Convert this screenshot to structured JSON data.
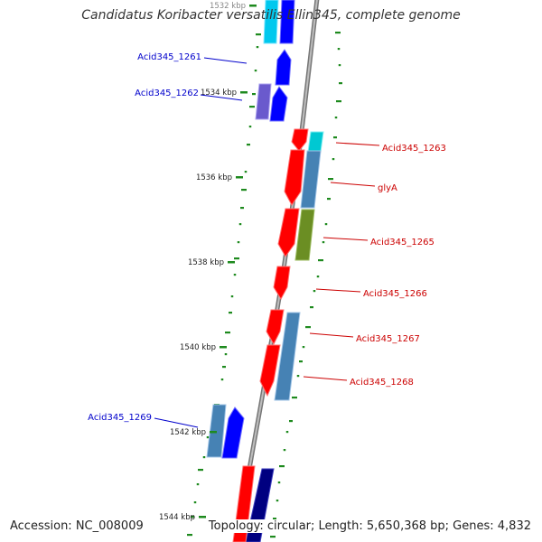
{
  "title": "Candidatus Koribacter versatilis Ellin345, complete genome",
  "accession": "Accession: NC_008009",
  "summary": "Topology: circular; Length: 5,650,368 bp; Genes: 4,832",
  "scale_labels": [
    "1532 kbp",
    "1534 kbp",
    "1536 kbp",
    "1538 kbp",
    "1540 kbp",
    "1542 kbp",
    "1544 kbp"
  ],
  "gene_labels": {
    "left": [
      "Acid345_1261",
      "Acid345_1262",
      "Acid345_1269"
    ],
    "right": [
      "Acid345_1263",
      "glyA",
      "Acid345_1265",
      "Acid345_1266",
      "Acid345_1267",
      "Acid345_1268"
    ]
  },
  "colors": {
    "forward_label": "#0000cc",
    "reverse_label": "#cc0000",
    "backbone": "#888888",
    "gc_dots": "#1e8a1e",
    "red_gene": "#ff0000",
    "blue_gene": "#0000ff",
    "steel_gene": "#4682b4",
    "cyan_gene": "#00c8d2",
    "olive_gene": "#6b8e23",
    "purple_gene": "#6a5acd",
    "navy_gene": "#000080"
  }
}
